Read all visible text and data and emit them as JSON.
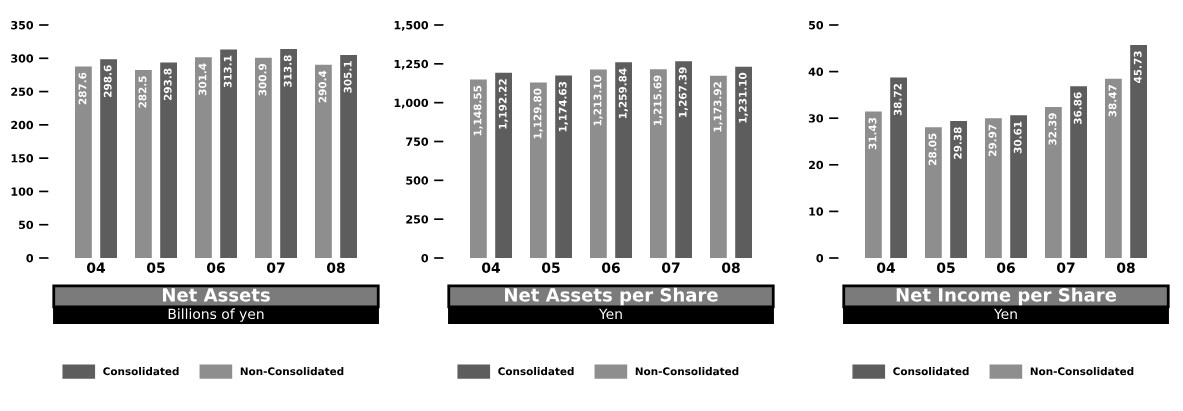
{
  "chart_data": [
    {
      "type": "bar",
      "title": "Net Assets",
      "subtitle": "Billions of yen",
      "categories": [
        "04",
        "05",
        "06",
        "07",
        "08"
      ],
      "ylim": [
        0,
        350
      ],
      "yticks": [
        0,
        50,
        100,
        150,
        200,
        250,
        300,
        350
      ],
      "legend": "bottom",
      "series": [
        {
          "name": "Non-Consolidated",
          "color": "#8e8e8e",
          "values": [
            287.6,
            282.5,
            301.4,
            300.9,
            290.4
          ],
          "value_labels": [
            "287.6",
            "282.5",
            "301.4",
            "300.9",
            "290.4"
          ]
        },
        {
          "name": "Consolidated",
          "color": "#5d5d5d",
          "values": [
            298.6,
            293.8,
            313.1,
            313.8,
            305.1
          ],
          "value_labels": [
            "298.6",
            "293.8",
            "313.1",
            "313.8",
            "305.1"
          ]
        }
      ]
    },
    {
      "type": "bar",
      "title": "Net Assets per Share",
      "subtitle": "Yen",
      "categories": [
        "04",
        "05",
        "06",
        "07",
        "08"
      ],
      "ylim": [
        0,
        1500
      ],
      "yticks": [
        0,
        250,
        500,
        750,
        {
          "value": 1000,
          "label": "1,000"
        },
        {
          "value": 1250,
          "label": "1,250"
        },
        {
          "value": 1500,
          "label": "1,500"
        }
      ],
      "legend": "bottom",
      "series": [
        {
          "name": "Non-Consolidated",
          "color": "#8e8e8e",
          "values": [
            1148.55,
            1129.8,
            1213.1,
            1215.69,
            1173.92
          ],
          "value_labels": [
            "1,148.55",
            "1,129.80",
            "1,213.10",
            "1,215.69",
            "1,173.92"
          ]
        },
        {
          "name": "Consolidated",
          "color": "#5d5d5d",
          "values": [
            1192.22,
            1174.63,
            1259.84,
            1267.39,
            1231.1
          ],
          "value_labels": [
            "1,192.22",
            "1,174.63",
            "1,259.84",
            "1,267.39",
            "1,231.10"
          ]
        }
      ]
    },
    {
      "type": "bar",
      "title": "Net Income per Share",
      "subtitle": "Yen",
      "categories": [
        "04",
        "05",
        "06",
        "07",
        "08"
      ],
      "ylim": [
        0,
        50
      ],
      "yticks": [
        0,
        10,
        20,
        30,
        40,
        50
      ],
      "legend": "bottom",
      "series": [
        {
          "name": "Non-Consolidated",
          "color": "#8e8e8e",
          "values": [
            31.43,
            28.05,
            29.97,
            32.39,
            38.47
          ],
          "value_labels": [
            "31.43",
            "28.05",
            "29.97",
            "32.39",
            "38.47"
          ]
        },
        {
          "name": "Consolidated",
          "color": "#5d5d5d",
          "values": [
            38.72,
            29.38,
            30.61,
            36.86,
            45.73
          ],
          "value_labels": [
            "38.72",
            "29.38",
            "30.61",
            "36.86",
            "45.73"
          ]
        }
      ]
    }
  ]
}
